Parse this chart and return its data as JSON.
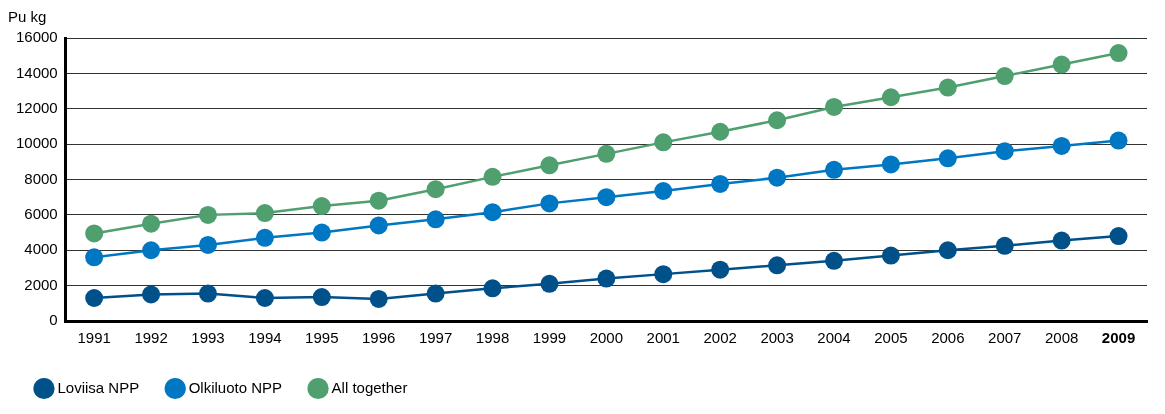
{
  "chart_data": {
    "type": "line",
    "ylabel": "Pu kg",
    "categories": [
      "1991",
      "1992",
      "1993",
      "1994",
      "1995",
      "1996",
      "1997",
      "1998",
      "1999",
      "2000",
      "2001",
      "2002",
      "2003",
      "2004",
      "2005",
      "2006",
      "2007",
      "2008",
      "2009"
    ],
    "series": [
      {
        "name": "Loviisa NPP",
        "color": "#00508a",
        "values": [
          1300,
          1500,
          1550,
          1300,
          1350,
          1250,
          1550,
          1850,
          2100,
          2400,
          2650,
          2900,
          3150,
          3400,
          3700,
          4000,
          4250,
          4550,
          4800
        ]
      },
      {
        "name": "Olkiluoto NPP",
        "color": "#0077c3",
        "values": [
          3600,
          4000,
          4300,
          4700,
          5000,
          5400,
          5750,
          6150,
          6650,
          7000,
          7350,
          7750,
          8100,
          8550,
          8850,
          9200,
          9600,
          9900,
          10200
        ]
      },
      {
        "name": "All together",
        "color": "#4f9f6f",
        "values": [
          4950,
          5500,
          6000,
          6100,
          6500,
          6800,
          7450,
          8150,
          8800,
          9450,
          10100,
          10700,
          11350,
          12100,
          12650,
          13200,
          13850,
          14500,
          15150
        ]
      }
    ],
    "ylim": [
      0,
      16000
    ],
    "yticks": [
      0,
      2000,
      4000,
      6000,
      8000,
      10000,
      12000,
      14000,
      16000
    ],
    "grid": "y",
    "legend": "bottom left",
    "marker": "circle",
    "line_style": "solid"
  }
}
